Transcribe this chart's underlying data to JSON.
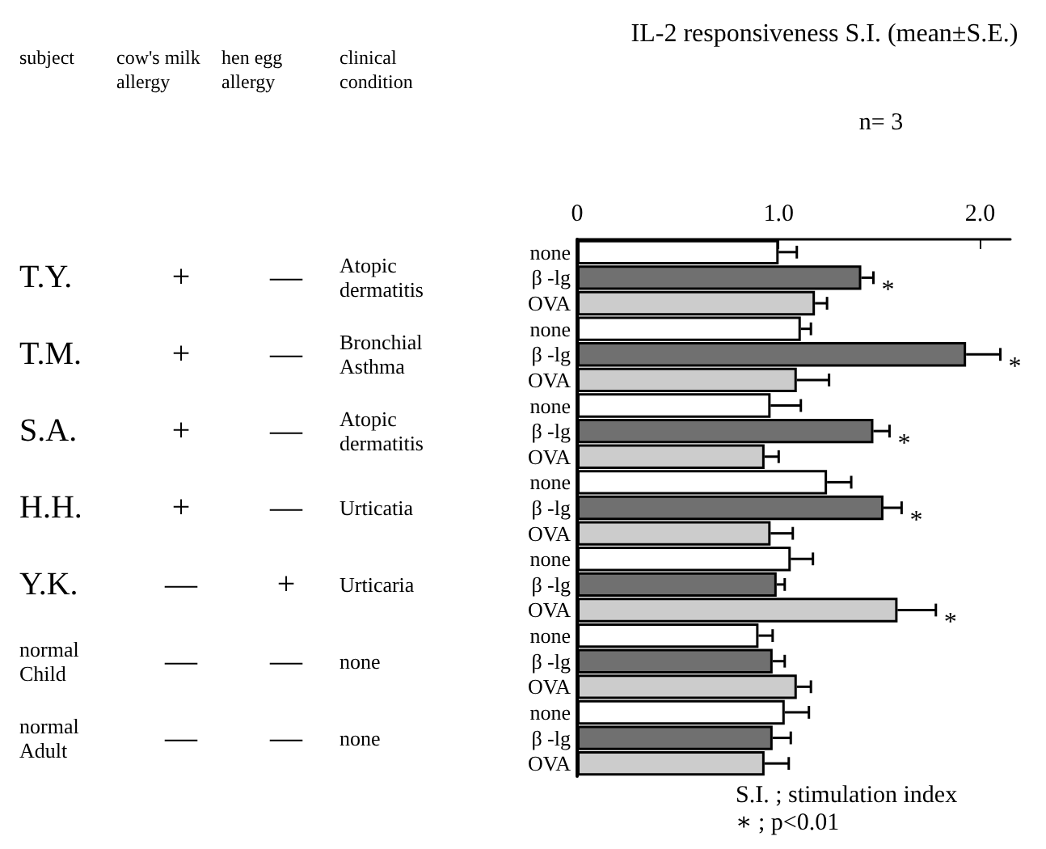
{
  "chart_data": {
    "type": "bar",
    "orientation": "horizontal",
    "title": "IL-2 responsiveness S.I. (mean±S.E.)",
    "categories": [
      "none",
      "β -lg",
      "OVA",
      "none",
      "β -lg",
      "OVA",
      "none",
      "β -lg",
      "OVA",
      "none",
      "β -lg",
      "OVA",
      "none",
      "β -lg",
      "OVA",
      "none",
      "β -lg",
      "OVA",
      "none",
      "β -lg",
      "OVA"
    ],
    "values": [
      1.0,
      1.41,
      1.18,
      1.11,
      1.93,
      1.09,
      0.96,
      1.47,
      0.93,
      1.24,
      1.52,
      0.96,
      1.06,
      0.99,
      1.59,
      0.9,
      0.97,
      1.09,
      1.03,
      0.97,
      0.93
    ],
    "errors": [
      0.09,
      0.06,
      0.06,
      0.05,
      0.17,
      0.16,
      0.15,
      0.08,
      0.07,
      0.12,
      0.09,
      0.11,
      0.11,
      0.04,
      0.19,
      0.07,
      0.06,
      0.07,
      0.12,
      0.09,
      0.12
    ],
    "value_labels": [
      null,
      "*",
      null,
      null,
      "*",
      null,
      null,
      "*",
      null,
      null,
      "*",
      null,
      null,
      null,
      "*",
      null,
      null,
      null,
      null,
      null,
      null
    ],
    "colors": [
      "#ffffff",
      "#707070",
      "#cccccc",
      "#ffffff",
      "#707070",
      "#cccccc",
      "#ffffff",
      "#707070",
      "#cccccc",
      "#ffffff",
      "#707070",
      "#cccccc",
      "#ffffff",
      "#707070",
      "#cccccc",
      "#ffffff",
      "#707070",
      "#cccccc",
      "#ffffff",
      "#707070",
      "#cccccc"
    ],
    "xlim": [
      0,
      2.15
    ],
    "xticks": [
      0,
      {
        "value": 1,
        "label": "1.0"
      },
      {
        "value": 2,
        "label": "2.0"
      }
    ],
    "grid": false,
    "annotations": [
      "subject",
      "cow's milk\nallergy",
      "hen egg\nallergy",
      "clinical\ncondition",
      "T.Y.",
      "+",
      "—",
      "Atopic\ndermatitis",
      "T.M.",
      "+",
      "—",
      "Bronchial\nAsthma",
      "S.A.",
      "+",
      "—",
      "Atopic\ndermatitis",
      "H.H.",
      "+",
      "—",
      "Urticatia",
      "Y.K.",
      "—",
      "+",
      "Urticaria",
      "normal\nChild",
      "—",
      "—",
      "none",
      "normal\nAdult",
      "—",
      "—",
      "none",
      "n= 3",
      "S.I. ; stimulation index",
      "∗ ; p<0.01"
    ]
  }
}
